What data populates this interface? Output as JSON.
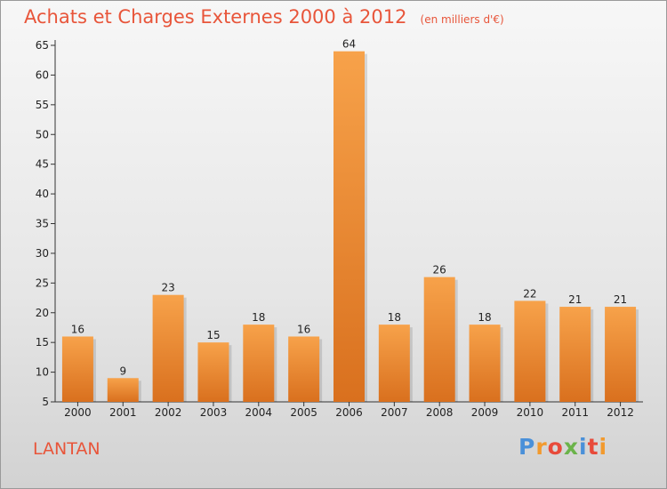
{
  "header": {
    "title": "Achats et Charges Externes 2000 à 2012",
    "subtitle": "(en milliers d'€)"
  },
  "footer": {
    "location": "LANTAN",
    "logo_text": "Proxiti",
    "logo_colors": [
      "#4a90d9",
      "#f29a2e",
      "#e84a3a",
      "#6bb34a",
      "#4a90d9",
      "#e84a3a",
      "#f29a2e"
    ]
  },
  "colors": {
    "bar_light": "#f7a24a",
    "bar_dark": "#d9701e",
    "title": "#e8553a",
    "axis": "#333333"
  },
  "chart_data": {
    "type": "bar",
    "categories": [
      "2000",
      "2001",
      "2002",
      "2003",
      "2004",
      "2005",
      "2006",
      "2007",
      "2008",
      "2009",
      "2010",
      "2011",
      "2012"
    ],
    "values": [
      16,
      9,
      23,
      15,
      18,
      16,
      64,
      18,
      26,
      18,
      22,
      21,
      21
    ],
    "data_labels": [
      "16",
      "9",
      "23",
      "15",
      "18",
      "16",
      "64",
      "18",
      "26",
      "18",
      "22",
      "21",
      "21"
    ],
    "yticks": [
      "5",
      "10",
      "15",
      "20",
      "25",
      "30",
      "35",
      "40",
      "45",
      "50",
      "55",
      "60",
      "65"
    ],
    "ylim": [
      5,
      65
    ],
    "grid": false,
    "legend": "none"
  }
}
